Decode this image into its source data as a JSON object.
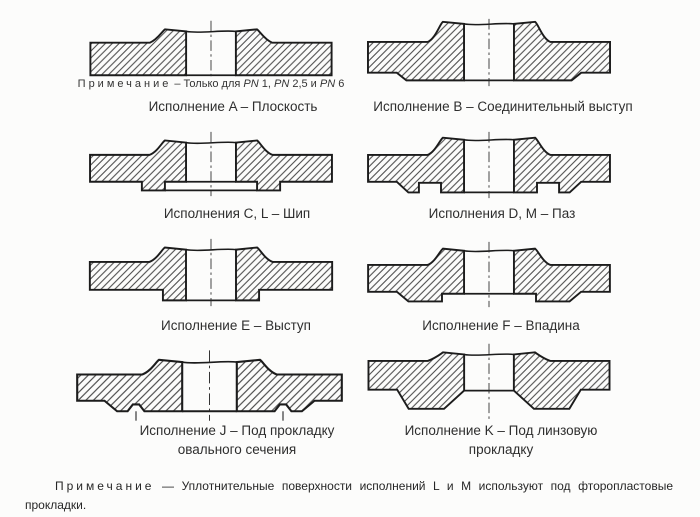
{
  "figure": {
    "title_semantic": "flange-sealing-face-types",
    "panels": [
      {
        "id": "A",
        "face_type": "flat",
        "label": "Исполнение A – Плоскость",
        "note": "Примечание – Только для PN 1, PN 2,5 и PN 6"
      },
      {
        "id": "B",
        "face_type": "raised",
        "label": "Исполнение B – Соединительный выступ"
      },
      {
        "id": "CL",
        "face_type": "tongue",
        "label": "Исполнения C, L – Шип"
      },
      {
        "id": "DM",
        "face_type": "groove",
        "label": "Исполнения D, M – Паз"
      },
      {
        "id": "E",
        "face_type": "male",
        "label": "Исполнение E – Выступ"
      },
      {
        "id": "F",
        "face_type": "female",
        "label": "Исполнение F – Впадина"
      },
      {
        "id": "J",
        "face_type": "oval",
        "label": "Исполнение J – Под прокладку овального сечения"
      },
      {
        "id": "K",
        "face_type": "lens",
        "label": "Исполнение K – Под линзовую прокладку"
      }
    ],
    "footer_note": "Примечание — Уплотнительные поверхности исполнений L и M используют под фторопластовые прокладки."
  },
  "colors": {
    "background": "#fcfcfb",
    "outline": "#1c1c1c",
    "hatch": "#4a4a4a",
    "text": "#2e2e2e"
  }
}
